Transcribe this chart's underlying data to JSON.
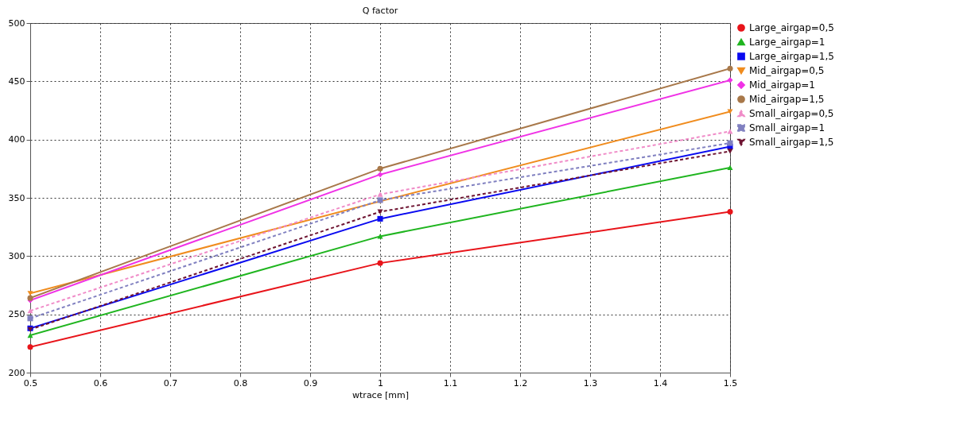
{
  "chart_data": {
    "type": "line",
    "title": "Q factor",
    "xlabel": "wtrace [mm]",
    "x": [
      0.5,
      1,
      1.5
    ],
    "xlim": [
      0.5,
      1.5
    ],
    "xticks": [
      0.5,
      0.6,
      0.7,
      0.8,
      0.9,
      1,
      1.1,
      1.2,
      1.3,
      1.4,
      1.5
    ],
    "ylim": [
      200,
      500
    ],
    "yticks": [
      200,
      250,
      300,
      350,
      400,
      450,
      500
    ],
    "grid": true,
    "legend": "top right",
    "series": [
      {
        "name": "Large_airgap=0,5",
        "color": "#e8141a",
        "values": [
          222,
          294,
          338
        ],
        "marker": "circle",
        "line_style": "solid"
      },
      {
        "name": "Large_airgap=1",
        "color": "#1fb51f",
        "values": [
          232,
          317,
          376
        ],
        "marker": "triangle",
        "line_style": "solid"
      },
      {
        "name": "Large_airgap=1,5",
        "color": "#0a0af0",
        "values": [
          238,
          332,
          394
        ],
        "marker": "square",
        "line_style": "solid"
      },
      {
        "name": "Mid_airgap=0,5",
        "color": "#f08c1e",
        "values": [
          268,
          347,
          424
        ],
        "marker": "triangle-down",
        "line_style": "solid"
      },
      {
        "name": "Mid_airgap=1",
        "color": "#f032e6",
        "values": [
          262,
          370,
          451
        ],
        "marker": "diamond",
        "line_style": "solid"
      },
      {
        "name": "Mid_airgap=1,5",
        "color": "#a8784a",
        "values": [
          264,
          375,
          461
        ],
        "marker": "circle",
        "line_style": "solid"
      },
      {
        "name": "Small_airgap=0,5",
        "color": "#f08cc8",
        "values": [
          253,
          353,
          407
        ],
        "marker": "triangle",
        "line_style": "dashed"
      },
      {
        "name": "Small_airgap=1",
        "color": "#8080c0",
        "values": [
          246.5,
          348,
          397
        ],
        "marker": "square",
        "line_style": "dashed"
      },
      {
        "name": "Small_airgap=1,5",
        "color": "#6e1432",
        "values": [
          237,
          338,
          390
        ],
        "marker": "triangle-down",
        "line_style": "dashed"
      }
    ]
  }
}
